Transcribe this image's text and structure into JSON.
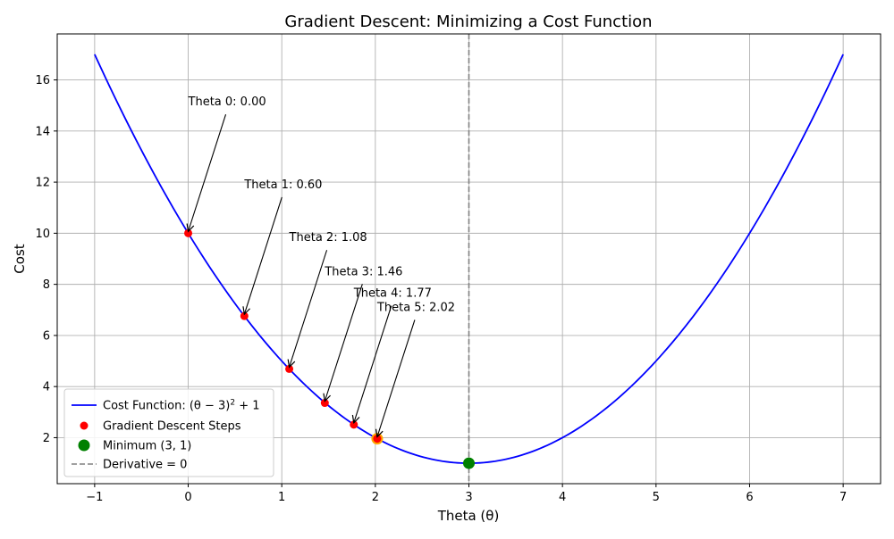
{
  "chart_data": {
    "type": "line",
    "title": "Gradient Descent: Minimizing a Cost Function",
    "xlabel": "Theta (θ)",
    "ylabel": "Cost",
    "xlim": [
      -1.4,
      7.4
    ],
    "ylim": [
      0.2,
      17.8
    ],
    "xticks": [
      -1,
      0,
      1,
      2,
      3,
      4,
      5,
      6,
      7
    ],
    "xtick_labels": [
      "−1",
      "0",
      "1",
      "2",
      "3",
      "4",
      "5",
      "6",
      "7"
    ],
    "yticks": [
      2,
      4,
      6,
      8,
      10,
      12,
      14,
      16
    ],
    "ytick_labels": [
      "2",
      "4",
      "6",
      "8",
      "10",
      "12",
      "14",
      "16"
    ],
    "grid": true,
    "legend_position": "lower-left",
    "series": [
      {
        "name_prefix": "Cost Function: ",
        "name_formula": "(θ − 3)",
        "name_exp": "2",
        "name_suffix": " + 1",
        "kind": "line",
        "color": "#0000ff",
        "function": "(theta-3)^2+1",
        "x_range": [
          -1,
          7
        ]
      },
      {
        "name": "Gradient Descent Steps",
        "kind": "scatter",
        "color": "#ff0000",
        "points": [
          {
            "x": 0.0,
            "y": 10.0
          },
          {
            "x": 0.6,
            "y": 6.76
          },
          {
            "x": 1.08,
            "y": 4.69
          },
          {
            "x": 1.46,
            "y": 3.36
          },
          {
            "x": 1.77,
            "y": 2.51
          },
          {
            "x": 2.02,
            "y": 1.96
          }
        ]
      },
      {
        "name": "Minimum (3, 1)",
        "kind": "scatter",
        "color": "#008000",
        "points": [
          {
            "x": 3,
            "y": 1
          }
        ]
      },
      {
        "name": "Derivative = 0",
        "kind": "vline",
        "color": "#808080",
        "x": 3
      }
    ],
    "final_step_highlight": {
      "x": 2.02,
      "y": 1.96,
      "color": "#ffa500"
    },
    "annotations": [
      {
        "text": "Theta 0: 0.00",
        "x": 0.0,
        "y": 10.0,
        "text_x": 0.0,
        "text_y": 15.0
      },
      {
        "text": "Theta 1: 0.60",
        "x": 0.6,
        "y": 6.76,
        "text_x": 0.6,
        "text_y": 11.76
      },
      {
        "text": "Theta 2: 1.08",
        "x": 1.08,
        "y": 4.69,
        "text_x": 1.08,
        "text_y": 9.69
      },
      {
        "text": "Theta 3: 1.46",
        "x": 1.46,
        "y": 3.36,
        "text_x": 1.46,
        "text_y": 8.36
      },
      {
        "text": "Theta 4: 1.77",
        "x": 1.77,
        "y": 2.51,
        "text_x": 1.77,
        "text_y": 7.51
      },
      {
        "text": "Theta 5: 2.02",
        "x": 2.02,
        "y": 1.96,
        "text_x": 2.02,
        "text_y": 6.96
      }
    ]
  }
}
